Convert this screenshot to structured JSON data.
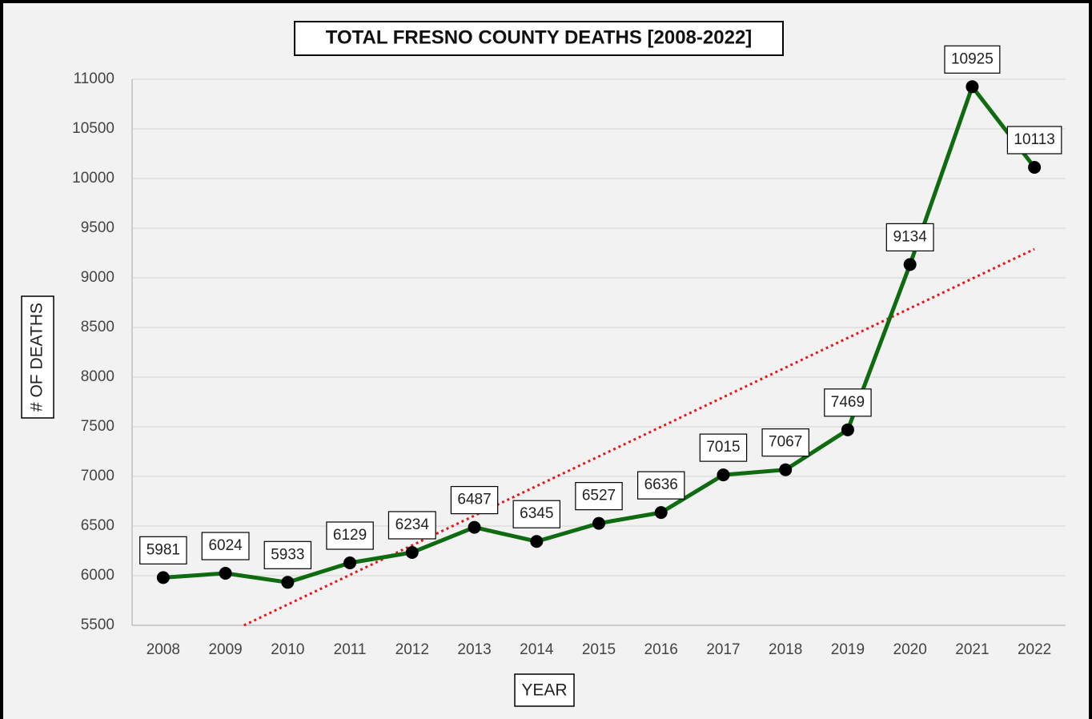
{
  "chart_data": {
    "type": "line",
    "title": "TOTAL FRESNO COUNTY DEATHS [2008-2022]",
    "x_label": "YEAR",
    "y_label": "# OF DEATHS",
    "categories": [
      "2008",
      "2009",
      "2010",
      "2011",
      "2012",
      "2013",
      "2014",
      "2015",
      "2016",
      "2017",
      "2018",
      "2019",
      "2020",
      "2021",
      "2022"
    ],
    "series": [
      {
        "name": "Deaths",
        "color": "#0f6b0f",
        "values": [
          5981,
          6024,
          5933,
          6129,
          6234,
          6487,
          6345,
          6527,
          6636,
          7015,
          7067,
          7469,
          9134,
          10925,
          10113
        ]
      }
    ],
    "ylim": [
      5500,
      11000
    ],
    "yticks": [
      5500,
      6000,
      6500,
      7000,
      7500,
      8000,
      8500,
      9000,
      9500,
      10000,
      10500,
      11000
    ],
    "grid": true,
    "data_labels": true,
    "trendline": true,
    "trendline_color": "#e8161b"
  }
}
